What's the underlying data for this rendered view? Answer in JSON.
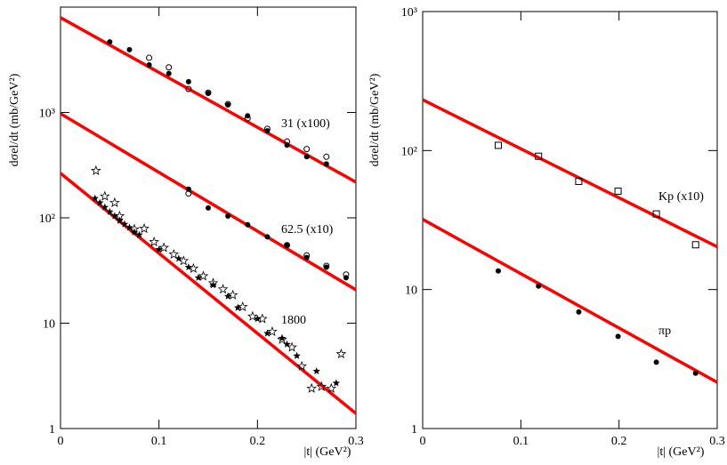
{
  "chart_data": [
    {
      "type": "scatter",
      "log_y": true,
      "xlabel": "|t|  (GeV²)",
      "ylabel": "dσel/dt  (mb/GeV²)",
      "xlim": [
        0,
        0.3
      ],
      "xticks": [
        0,
        0.1,
        0.2,
        0.3
      ],
      "ylim": [
        1,
        10000
      ],
      "yticks": [
        1,
        10,
        {
          "value": 100,
          "label": "10²"
        },
        {
          "value": 1000,
          "label": "10³"
        }
      ],
      "annotations": [
        "31 (x100)",
        "62.5 (x10)",
        "1800"
      ],
      "series": [
        {
          "kind": "line",
          "color": "#ff0000",
          "x": [
            0,
            0.3
          ],
          "values": [
            7950,
            218
          ]
        },
        {
          "kind": "line",
          "color": "#ff0000",
          "x": [
            0,
            0.3
          ],
          "values": [
            975,
            20.7
          ]
        },
        {
          "kind": "line",
          "color": "#ff0000",
          "x": [
            0,
            0.3
          ],
          "values": [
            265,
            1.39
          ]
        },
        {
          "kind": "filled-circle",
          "color": "#000000",
          "x": [
            0.05,
            0.07,
            0.09,
            0.11,
            0.13,
            0.15,
            0.17,
            0.19,
            0.21,
            0.23,
            0.25,
            0.27
          ],
          "values": [
            4680,
            3940,
            2830,
            2340,
            1960,
            1520,
            1180,
            930,
            670,
            490,
            380,
            325
          ]
        },
        {
          "kind": "open-circle",
          "color": "#000000",
          "x": [
            0.09,
            0.11,
            0.13,
            0.15,
            0.17,
            0.19,
            0.21,
            0.23,
            0.25,
            0.27
          ],
          "values": [
            3300,
            2680,
            1670,
            1540,
            1200,
            880,
            700,
            530,
            450,
            380
          ]
        },
        {
          "kind": "filled-circle",
          "color": "#000000",
          "x": [
            0.13,
            0.15,
            0.17,
            0.19,
            0.21,
            0.23,
            0.25,
            0.27,
            0.29
          ],
          "values": [
            187,
            124,
            104,
            86,
            66,
            55,
            42,
            34,
            27
          ]
        },
        {
          "kind": "open-circle",
          "color": "#000000",
          "x": [
            0.13,
            0.23,
            0.25,
            0.27,
            0.29
          ],
          "values": [
            170,
            55,
            44,
            35,
            29
          ]
        },
        {
          "kind": "filled-star",
          "color": "#000000",
          "x": [
            0.035,
            0.04,
            0.045,
            0.05,
            0.055,
            0.06,
            0.065,
            0.07,
            0.075,
            0.08,
            0.1,
            0.12,
            0.13,
            0.14,
            0.155,
            0.17,
            0.18,
            0.2,
            0.21,
            0.225,
            0.23,
            0.24,
            0.26,
            0.28
          ],
          "values": [
            153,
            139,
            126,
            114,
            104,
            94,
            87,
            81,
            73,
            69,
            50,
            41,
            34,
            27,
            23,
            18,
            14,
            11,
            8,
            7.2,
            6.3,
            4.9,
            3.5,
            2.7
          ]
        },
        {
          "kind": "open-star",
          "color": "#000000",
          "x": [
            0.036,
            0.045,
            0.055,
            0.06,
            0.075,
            0.085,
            0.095,
            0.105,
            0.115,
            0.125,
            0.135,
            0.145,
            0.155,
            0.165,
            0.175,
            0.185,
            0.195,
            0.205,
            0.215,
            0.225,
            0.235,
            0.245,
            0.255,
            0.265,
            0.275,
            0.285
          ],
          "values": [
            280,
            160,
            139,
            104,
            78,
            79,
            59,
            52,
            45,
            39,
            33,
            28,
            24,
            21,
            18.5,
            14.3,
            11.6,
            11,
            8.3,
            7,
            5.9,
            3.9,
            2.4,
            2.5,
            2.4,
            5.1
          ]
        }
      ]
    },
    {
      "type": "scatter",
      "log_y": true,
      "xlabel": "|t|  (GeV²)",
      "ylabel": "dσel/dt  (mb/GeV²)",
      "xlim": [
        0,
        0.3
      ],
      "xticks": [
        0,
        0.1,
        0.2,
        0.3
      ],
      "ylim": [
        1,
        1000
      ],
      "yticks": [
        1,
        10,
        {
          "value": 100,
          "label": "10²"
        },
        {
          "value": 1000,
          "label": "10³"
        }
      ],
      "annotations": [
        "Kp (x10)",
        "πp"
      ],
      "series": [
        {
          "kind": "line",
          "color": "#ff0000",
          "x": [
            0,
            0.3
          ],
          "values": [
            232,
            20.3
          ]
        },
        {
          "kind": "line",
          "color": "#ff0000",
          "x": [
            0,
            0.3
          ],
          "values": [
            32,
            2.15
          ]
        },
        {
          "kind": "open-square",
          "color": "#000000",
          "x": [
            0.077,
            0.118,
            0.159,
            0.199,
            0.238,
            0.278
          ],
          "values": [
            109,
            91,
            60,
            51,
            35,
            21
          ]
        },
        {
          "kind": "filled-circle",
          "color": "#000000",
          "x": [
            0.077,
            0.118,
            0.159,
            0.199,
            0.238,
            0.278
          ],
          "values": [
            13.6,
            10.6,
            6.9,
            4.6,
            3.0,
            2.5
          ]
        }
      ]
    }
  ]
}
